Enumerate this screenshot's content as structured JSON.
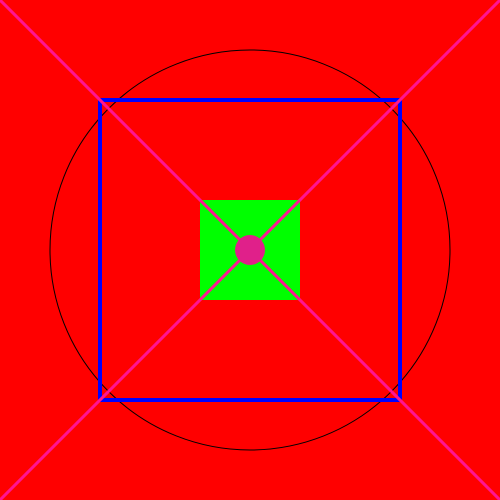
{
  "colors": {
    "background": "#ff0000",
    "circle_stroke": "#000000",
    "outer_square_stroke": "#0000ff",
    "inner_square_fill": "#00ff00",
    "diagonals": "#ff1493",
    "center_dot": "#e0208a"
  },
  "shapes": [
    "background-rect",
    "outer-circle",
    "outer-square",
    "inner-square",
    "diagonal-lines",
    "center-dot"
  ]
}
